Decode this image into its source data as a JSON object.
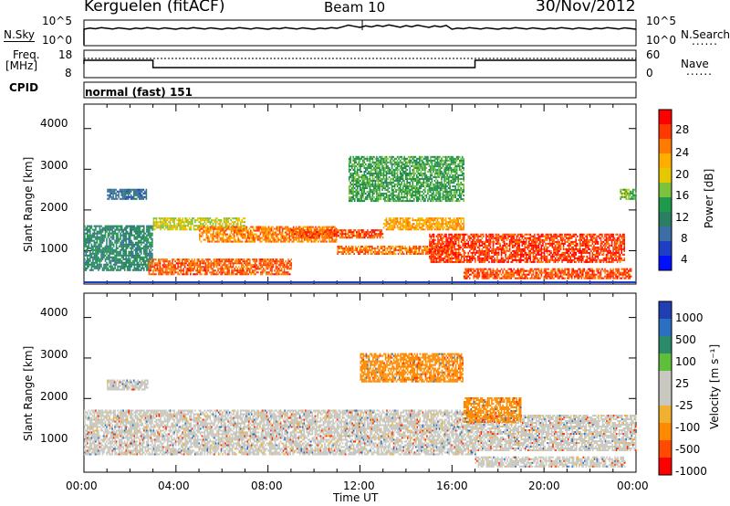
{
  "header": {
    "station": "Kerguelen (fitACF)",
    "beam": "Beam 10",
    "date": "30/Nov/2012"
  },
  "noise_panel": {
    "left_label": "N.Sky",
    "right_label": "N.Search",
    "left_ticks": [
      "10^5",
      "10^0"
    ],
    "right_ticks": [
      "10^5",
      "10^0"
    ]
  },
  "freq_panel": {
    "left_label_1": "Freq.",
    "left_label_2": "[MHz]",
    "left_ticks": [
      "18",
      "8"
    ],
    "right_label": "Nave",
    "right_ticks": [
      "60",
      "0"
    ],
    "legend_dots": "......"
  },
  "cpid": {
    "label": "CPID",
    "value": "normal (fast) 151"
  },
  "power_panel": {
    "ylabel": "Slant Range [km]",
    "yticks": [
      "4000",
      "3000",
      "2000",
      "1000"
    ],
    "cbar_label": "Power [dB]",
    "cbar_ticks": [
      "28",
      "24",
      "20",
      "16",
      "12",
      "8",
      "4"
    ],
    "cbar_colors": [
      "#ff0000",
      "#ff3a00",
      "#ff7a00",
      "#ffae00",
      "#e6c800",
      "#7cc23c",
      "#1f9a4a",
      "#2a7f62",
      "#3a6ea5",
      "#1e3fc4",
      "#0010ff"
    ]
  },
  "velocity_panel": {
    "ylabel": "Slant Range [km]",
    "yticks": [
      "4000",
      "3000",
      "2000",
      "1000"
    ],
    "cbar_label": "Velocity [m s⁻¹]",
    "cbar_ticks": [
      "1000",
      "500",
      "100",
      "25",
      "-25",
      "-100",
      "-500",
      "-1000"
    ],
    "cbar_colors": [
      "#1f3fb5",
      "#2a6fc0",
      "#2a8a6a",
      "#5fbf3a",
      "#c8c8c0",
      "#c8c8c0",
      "#f0b030",
      "#ff8a00",
      "#ff4a00",
      "#ff0000"
    ]
  },
  "time_axis": {
    "ticks": [
      "00:00",
      "04:00",
      "08:00",
      "12:00",
      "16:00",
      "20:00",
      "00:00"
    ],
    "label": "Time UT"
  },
  "chart_data": [
    {
      "type": "heatmap",
      "title": "Power",
      "xlabel": "Time UT",
      "ylabel": "Slant Range [km]",
      "x_range_hours": [
        0,
        24
      ],
      "ylim": [
        180,
        4600
      ],
      "colorbar": {
        "label": "Power [dB]",
        "range": [
          0,
          32
        ],
        "ticks": [
          4,
          8,
          12,
          16,
          20,
          24,
          28
        ]
      },
      "bands": [
        {
          "t0": 0.0,
          "t1": 3.0,
          "r0": 500,
          "r1": 1600,
          "power": 9
        },
        {
          "t0": 1.0,
          "t1": 2.7,
          "r0": 2250,
          "r1": 2500,
          "power": 6
        },
        {
          "t0": 2.8,
          "t1": 9.0,
          "r0": 400,
          "r1": 800,
          "power": 26
        },
        {
          "t0": 3.0,
          "t1": 7.0,
          "r0": 1500,
          "r1": 1800,
          "power": 17
        },
        {
          "t0": 5.0,
          "t1": 11.0,
          "r0": 1200,
          "r1": 1600,
          "power": 24
        },
        {
          "t0": 9.0,
          "t1": 13.0,
          "r0": 1300,
          "r1": 1500,
          "power": 27
        },
        {
          "t0": 11.0,
          "t1": 16.0,
          "r0": 900,
          "r1": 1100,
          "power": 25
        },
        {
          "t0": 13.0,
          "t1": 16.5,
          "r0": 1500,
          "r1": 1800,
          "power": 22
        },
        {
          "t0": 11.5,
          "t1": 16.5,
          "r0": 2200,
          "r1": 3300,
          "power": 12
        },
        {
          "t0": 15.0,
          "t1": 23.5,
          "r0": 700,
          "r1": 1400,
          "power": 28
        },
        {
          "t0": 16.5,
          "t1": 23.8,
          "r0": 300,
          "r1": 550,
          "power": 27
        },
        {
          "t0": 23.3,
          "t1": 24.0,
          "r0": 2250,
          "r1": 2500,
          "power": 14
        }
      ]
    },
    {
      "type": "heatmap",
      "title": "Velocity",
      "xlabel": "Time UT",
      "ylabel": "Slant Range [km]",
      "x_range_hours": [
        0,
        24
      ],
      "ylim": [
        180,
        4600
      ],
      "colorbar": {
        "label": "Velocity [m s⁻¹]",
        "ticks": [
          1000,
          500,
          100,
          25,
          -25,
          -100,
          -500,
          -1000
        ]
      },
      "bands": [
        {
          "t0": 0.0,
          "t1": 17.0,
          "r0": 600,
          "r1": 1700,
          "velocity": 0
        },
        {
          "t0": 1.0,
          "t1": 2.8,
          "r0": 2200,
          "r1": 2450,
          "velocity": 0
        },
        {
          "t0": 17.0,
          "t1": 24.0,
          "r0": 700,
          "r1": 1600,
          "velocity": 0
        },
        {
          "t0": 12.0,
          "t1": 16.5,
          "r0": 2400,
          "r1": 3100,
          "velocity": -150
        },
        {
          "t0": 16.5,
          "t1": 19.0,
          "r0": 1400,
          "r1": 2000,
          "velocity": -200
        },
        {
          "t0": 17.0,
          "t1": 23.5,
          "r0": 300,
          "r1": 550,
          "velocity": 0
        }
      ]
    }
  ]
}
